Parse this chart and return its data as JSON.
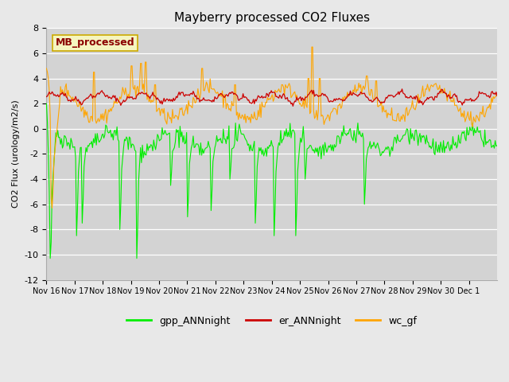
{
  "title": "Mayberry processed CO2 Fluxes",
  "ylabel": "CO2 Flux (urology/m2/s)",
  "ylim": [
    -12,
    8
  ],
  "yticks": [
    -12,
    -10,
    -8,
    -6,
    -4,
    -2,
    0,
    2,
    4,
    6,
    8
  ],
  "background_color": "#e8e8e8",
  "plot_bg_color": "#d3d3d3",
  "legend_label": "MB_processed",
  "legend_label_color": "#8b0000",
  "legend_box_facecolor": "#f5f5c0",
  "legend_box_edgecolor": "#ccaa00",
  "series_colors": {
    "gpp_ANNnight": "#00ee00",
    "er_ANNnight": "#cc0000",
    "wc_gf": "#ffa500"
  },
  "xtick_labels": [
    "Nov 16",
    "Nov 17",
    "Nov 18",
    "Nov 19",
    "Nov 20",
    "Nov 21",
    "Nov 22",
    "Nov 23",
    "Nov 24",
    "Nov 25",
    "Nov 26",
    "Nov 27",
    "Nov 28",
    "Nov 29",
    "Nov 30",
    "Dec 1"
  ],
  "xtick_vals": [
    16,
    17,
    18,
    19,
    20,
    21,
    22,
    23,
    24,
    25,
    26,
    27,
    28,
    29,
    30,
    31
  ],
  "n_points": 480,
  "xlim": [
    16,
    32
  ]
}
